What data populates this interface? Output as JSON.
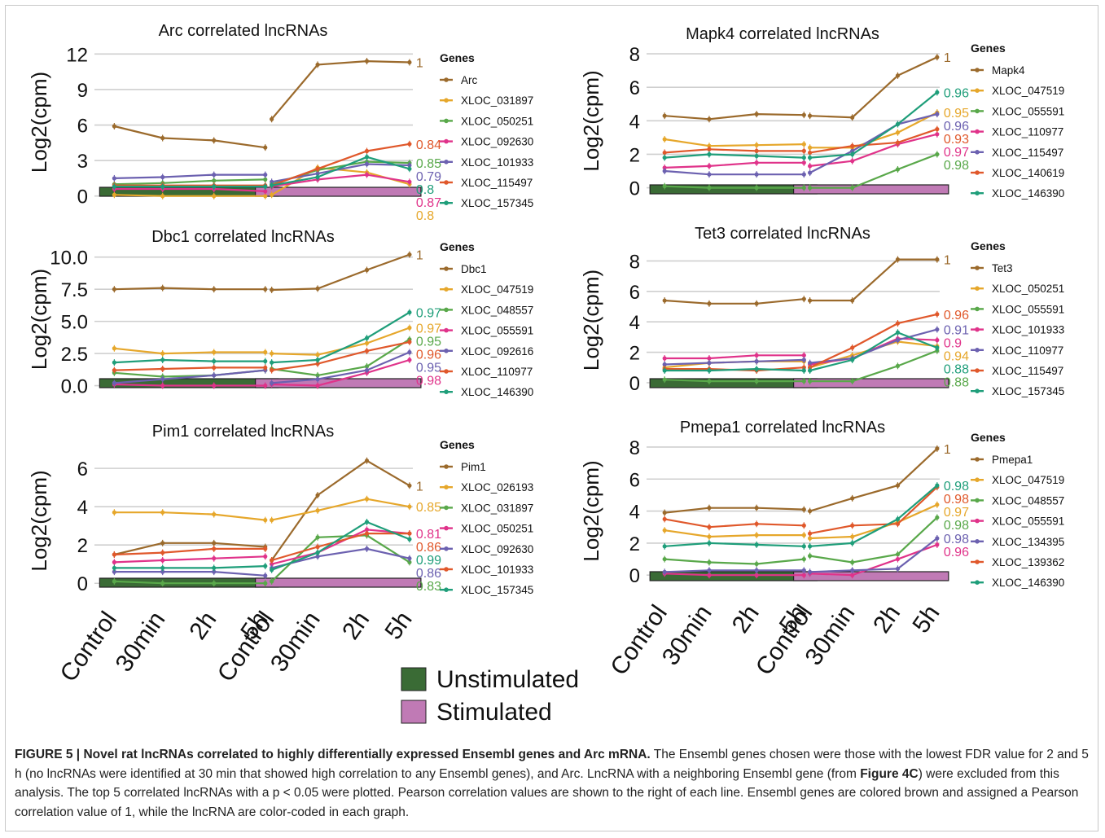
{
  "figure": {
    "x_ticks": [
      "Control",
      "30min",
      "2h",
      "5h"
    ],
    "condition_legend": [
      {
        "label": "Unstimulated",
        "color": "#3a6b35"
      },
      {
        "label": "Stimulated",
        "color": "#c07ab5"
      }
    ],
    "legend_title": "Genes",
    "ylabel": "Log2(cpm)"
  },
  "caption": {
    "label": "FIGURE 5 |",
    "title": "Novel rat lncRNAs correlated to highly differentially expressed Ensembl genes and Arc mRNA.",
    "text_1": "The Ensembl genes chosen were those with the lowest FDR value for 2 and 5 h (no lncRNAs were identified at 30 min that showed high correlation to any Ensembl genes), and Arc. LncRNA with a neighboring Ensembl gene (from",
    "ref": "Figure 4C",
    "text_2": ") were excluded from this analysis. The top 5 correlated lncRNAs with a p < 0.05 were plotted. Pearson correlation values are shown to the right of each line. Ensembl genes are colored brown and assigned a Pearson correlation value of 1, while the lncRNA are color-coded in each graph."
  },
  "chart_data": [
    {
      "type": "line",
      "title": "Arc correlated lncRNAs",
      "ylabel": "Log2(cpm)",
      "ylim": [
        -0.5,
        12.3
      ],
      "yticks": [
        0,
        3,
        6,
        9,
        12
      ],
      "ytick_labels": [
        "0",
        "3",
        "6",
        "9",
        "12"
      ],
      "categories": [
        "Control",
        "30min",
        "2h",
        "5h"
      ],
      "series": [
        {
          "name": "Arc",
          "color": "#9b6a2c",
          "unstimulated": [
            5.9,
            4.9,
            4.7,
            4.1
          ],
          "stimulated": [
            6.5,
            11.1,
            11.4,
            11.3
          ],
          "r": "1"
        },
        {
          "name": "XLOC_031897",
          "color": "#e6a72b",
          "unstimulated": [
            0.1,
            0.0,
            0.0,
            0.0
          ],
          "stimulated": [
            0.1,
            2.4,
            2.0,
            1.0
          ],
          "r": "0.8"
        },
        {
          "name": "XLOC_050251",
          "color": "#59a84a",
          "unstimulated": [
            1.0,
            1.1,
            1.3,
            1.4
          ],
          "stimulated": [
            1.0,
            2.2,
            2.9,
            2.8
          ],
          "r": "0.85"
        },
        {
          "name": "XLOC_092630",
          "color": "#e0338a",
          "unstimulated": [
            0.6,
            0.6,
            0.6,
            0.4
          ],
          "stimulated": [
            0.8,
            1.4,
            1.8,
            1.2
          ],
          "r": "0.87"
        },
        {
          "name": "XLOC_101933",
          "color": "#6c61b0",
          "unstimulated": [
            1.5,
            1.6,
            1.8,
            1.8
          ],
          "stimulated": [
            1.2,
            1.9,
            2.7,
            2.6
          ],
          "r": "0.79"
        },
        {
          "name": "XLOC_115497",
          "color": "#e0582b",
          "unstimulated": [
            0.9,
            0.9,
            0.9,
            0.9
          ],
          "stimulated": [
            0.9,
            2.3,
            3.8,
            4.4
          ],
          "r": "0.84"
        },
        {
          "name": "XLOC_157345",
          "color": "#1f9e7a",
          "unstimulated": [
            0.8,
            0.8,
            0.8,
            0.8
          ],
          "stimulated": [
            0.9,
            1.6,
            3.3,
            2.3
          ],
          "r": "0.8"
        }
      ]
    },
    {
      "type": "line",
      "title": "Mapk4 correlated lncRNAs",
      "ylabel": "Log2(cpm)",
      "ylim": [
        -0.7,
        8.2
      ],
      "yticks": [
        0,
        2,
        4,
        6,
        8
      ],
      "ytick_labels": [
        "0",
        "2",
        "4",
        "6",
        "8"
      ],
      "categories": [
        "Control",
        "30min",
        "2h",
        "5h"
      ],
      "series": [
        {
          "name": "Mapk4",
          "color": "#9b6a2c",
          "unstimulated": [
            4.3,
            4.1,
            4.4,
            4.35
          ],
          "stimulated": [
            4.3,
            4.2,
            6.7,
            7.8
          ],
          "r": "1"
        },
        {
          "name": "XLOC_047519",
          "color": "#e6a72b",
          "unstimulated": [
            2.9,
            2.5,
            2.55,
            2.6
          ],
          "stimulated": [
            2.4,
            2.4,
            3.3,
            4.5
          ],
          "r": "0.95"
        },
        {
          "name": "XLOC_055591",
          "color": "#59a84a",
          "unstimulated": [
            0.1,
            0.0,
            0.0,
            0.0
          ],
          "stimulated": [
            0.0,
            0.0,
            1.1,
            2.0
          ],
          "r": "0.98"
        },
        {
          "name": "XLOC_110977",
          "color": "#e0338a",
          "unstimulated": [
            1.2,
            1.3,
            1.5,
            1.5
          ],
          "stimulated": [
            1.3,
            1.6,
            2.6,
            3.2
          ],
          "r": "0.97"
        },
        {
          "name": "XLOC_115497",
          "color": "#6c61b0",
          "unstimulated": [
            1.0,
            0.8,
            0.8,
            0.8
          ],
          "stimulated": [
            0.9,
            2.2,
            3.8,
            4.4
          ],
          "r": "0.96"
        },
        {
          "name": "XLOC_140619",
          "color": "#e0582b",
          "unstimulated": [
            2.1,
            2.3,
            2.2,
            2.2
          ],
          "stimulated": [
            2.1,
            2.5,
            2.7,
            3.5
          ],
          "r": "0.93"
        },
        {
          "name": "XLOC_146390",
          "color": "#1f9e7a",
          "unstimulated": [
            1.8,
            2.0,
            1.9,
            1.8
          ],
          "stimulated": [
            1.8,
            2.0,
            3.8,
            5.7
          ],
          "r": "0.96"
        }
      ]
    },
    {
      "type": "line",
      "title": "Dbc1 correlated lncRNAs",
      "ylabel": "Log2(cpm)",
      "ylim": [
        -0.6,
        10.3
      ],
      "yticks": [
        0,
        2.5,
        5,
        7.5,
        10
      ],
      "ytick_labels": [
        "0.0",
        "2.5",
        "5.0",
        "7.5",
        "10.0"
      ],
      "categories": [
        "Control",
        "30min",
        "2h",
        "5h"
      ],
      "series": [
        {
          "name": "Dbc1",
          "color": "#9b6a2c",
          "unstimulated": [
            7.5,
            7.6,
            7.5,
            7.5
          ],
          "stimulated": [
            7.45,
            7.55,
            9.0,
            10.2
          ],
          "r": "1"
        },
        {
          "name": "XLOC_047519",
          "color": "#e6a72b",
          "unstimulated": [
            2.9,
            2.5,
            2.6,
            2.6
          ],
          "stimulated": [
            2.5,
            2.4,
            3.3,
            4.5
          ],
          "r": "0.97"
        },
        {
          "name": "XLOC_048557",
          "color": "#59a84a",
          "unstimulated": [
            1.0,
            0.7,
            0.8,
            1.2
          ],
          "stimulated": [
            1.3,
            0.8,
            1.5,
            3.6
          ],
          "r": "0.95"
        },
        {
          "name": "XLOC_055591",
          "color": "#e0338a",
          "unstimulated": [
            0.1,
            0.0,
            0.0,
            0.0
          ],
          "stimulated": [
            0.1,
            0.0,
            1.0,
            2.0
          ],
          "r": "0.98"
        },
        {
          "name": "XLOC_092616",
          "color": "#6c61b0",
          "unstimulated": [
            0.2,
            0.5,
            0.8,
            1.2
          ],
          "stimulated": [
            0.2,
            0.5,
            1.2,
            2.6
          ],
          "r": "0.95"
        },
        {
          "name": "XLOC_110977",
          "color": "#e0582b",
          "unstimulated": [
            1.2,
            1.3,
            1.4,
            1.4
          ],
          "stimulated": [
            1.2,
            1.7,
            2.7,
            3.4
          ],
          "r": "0.96"
        },
        {
          "name": "XLOC_146390",
          "color": "#1f9e7a",
          "unstimulated": [
            1.8,
            2.0,
            1.9,
            1.9
          ],
          "stimulated": [
            1.8,
            2.0,
            3.7,
            5.7
          ],
          "r": "0.97"
        }
      ]
    },
    {
      "type": "line",
      "title": "Tet3 correlated lncRNAs",
      "ylabel": "Log2(cpm)",
      "ylim": [
        -0.7,
        8.4
      ],
      "yticks": [
        0,
        2,
        4,
        6,
        8
      ],
      "ytick_labels": [
        "0",
        "2",
        "4",
        "6",
        "8"
      ],
      "categories": [
        "Control",
        "30min",
        "2h",
        "5h"
      ],
      "series": [
        {
          "name": "Tet3",
          "color": "#9b6a2c",
          "unstimulated": [
            5.4,
            5.2,
            5.2,
            5.5
          ],
          "stimulated": [
            5.4,
            5.4,
            8.1,
            8.1
          ],
          "r": "1"
        },
        {
          "name": "XLOC_050251",
          "color": "#e6a72b",
          "unstimulated": [
            1.0,
            1.3,
            1.4,
            1.4
          ],
          "stimulated": [
            1.0,
            1.8,
            2.7,
            2.4
          ],
          "r": "0.94"
        },
        {
          "name": "XLOC_055591",
          "color": "#59a84a",
          "unstimulated": [
            0.2,
            0.1,
            0.1,
            0.1
          ],
          "stimulated": [
            0.1,
            0.1,
            1.1,
            2.1
          ],
          "r": "0.88"
        },
        {
          "name": "XLOC_101933",
          "color": "#e0338a",
          "unstimulated": [
            1.6,
            1.6,
            1.8,
            1.8
          ],
          "stimulated": [
            1.2,
            1.6,
            2.9,
            2.8
          ],
          "r": "0.9"
        },
        {
          "name": "XLOC_110977",
          "color": "#6c61b0",
          "unstimulated": [
            1.2,
            1.3,
            1.4,
            1.5
          ],
          "stimulated": [
            1.3,
            1.6,
            2.8,
            3.5
          ],
          "r": "0.91"
        },
        {
          "name": "XLOC_115497",
          "color": "#e0582b",
          "unstimulated": [
            0.9,
            0.9,
            0.8,
            1.0
          ],
          "stimulated": [
            1.0,
            2.3,
            3.9,
            4.5
          ],
          "r": "0.96"
        },
        {
          "name": "XLOC_157345",
          "color": "#1f9e7a",
          "unstimulated": [
            0.8,
            0.8,
            0.9,
            0.8
          ],
          "stimulated": [
            0.8,
            1.5,
            3.3,
            2.3
          ],
          "r": "0.88"
        }
      ]
    },
    {
      "type": "line",
      "title": "Pim1 correlated lncRNAs",
      "ylabel": "Log2(cpm)",
      "ylim": [
        -0.5,
        6.6
      ],
      "yticks": [
        0,
        2,
        4,
        6
      ],
      "ytick_labels": [
        "0",
        "2",
        "4",
        "6"
      ],
      "categories": [
        "Control",
        "30min",
        "2h",
        "5h"
      ],
      "series": [
        {
          "name": "Pim1",
          "color": "#9b6a2c",
          "unstimulated": [
            1.5,
            2.1,
            2.1,
            1.9
          ],
          "stimulated": [
            1.2,
            4.6,
            6.4,
            5.1
          ],
          "r": "1"
        },
        {
          "name": "XLOC_026193",
          "color": "#e6a72b",
          "unstimulated": [
            3.7,
            3.7,
            3.6,
            3.3
          ],
          "stimulated": [
            3.3,
            3.8,
            4.4,
            4.0
          ],
          "r": "0.85"
        },
        {
          "name": "XLOC_031897",
          "color": "#59a84a",
          "unstimulated": [
            0.1,
            0.0,
            0.0,
            0.0
          ],
          "stimulated": [
            0.1,
            2.4,
            2.5,
            1.1
          ],
          "r": "0.83"
        },
        {
          "name": "XLOC_050251",
          "color": "#e0338a",
          "unstimulated": [
            1.1,
            1.2,
            1.3,
            1.4
          ],
          "stimulated": [
            1.0,
            1.6,
            2.8,
            2.6
          ],
          "r": "0.81"
        },
        {
          "name": "XLOC_092630",
          "color": "#6c61b0",
          "unstimulated": [
            0.6,
            0.6,
            0.6,
            0.4
          ],
          "stimulated": [
            0.8,
            1.4,
            1.8,
            1.3
          ],
          "r": "0.86"
        },
        {
          "name": "XLOC_101933",
          "color": "#e0582b",
          "unstimulated": [
            1.5,
            1.6,
            1.8,
            1.8
          ],
          "stimulated": [
            1.2,
            1.9,
            2.6,
            2.6
          ],
          "r": "0.86"
        },
        {
          "name": "XLOC_157345",
          "color": "#1f9e7a",
          "unstimulated": [
            0.8,
            0.8,
            0.8,
            0.9
          ],
          "stimulated": [
            0.7,
            1.6,
            3.2,
            2.3
          ],
          "r": "0.99"
        }
      ]
    },
    {
      "type": "line",
      "title": "Pmepa1 correlated lncRNAs",
      "ylabel": "Log2(cpm)",
      "ylim": [
        -0.7,
        8.2
      ],
      "yticks": [
        0,
        2,
        4,
        6,
        8
      ],
      "ytick_labels": [
        "0",
        "2",
        "4",
        "6",
        "8"
      ],
      "categories": [
        "Control",
        "30min",
        "2h",
        "5h"
      ],
      "series": [
        {
          "name": "Pmepa1",
          "color": "#9b6a2c",
          "unstimulated": [
            3.9,
            4.2,
            4.2,
            4.1
          ],
          "stimulated": [
            4.0,
            4.8,
            5.6,
            7.9
          ],
          "r": "1"
        },
        {
          "name": "XLOC_047519",
          "color": "#e6a72b",
          "unstimulated": [
            2.8,
            2.4,
            2.5,
            2.5
          ],
          "stimulated": [
            2.3,
            2.4,
            3.3,
            4.4
          ],
          "r": "0.97"
        },
        {
          "name": "XLOC_048557",
          "color": "#59a84a",
          "unstimulated": [
            1.0,
            0.8,
            0.7,
            1.0
          ],
          "stimulated": [
            1.2,
            0.8,
            1.3,
            3.6
          ],
          "r": "0.98"
        },
        {
          "name": "XLOC_055591",
          "color": "#e0338a",
          "unstimulated": [
            0.1,
            0.0,
            0.0,
            0.0
          ],
          "stimulated": [
            0.1,
            0.0,
            1.0,
            1.9
          ],
          "r": "0.96"
        },
        {
          "name": "XLOC_134395",
          "color": "#6c61b0",
          "unstimulated": [
            0.2,
            0.3,
            0.3,
            0.3
          ],
          "stimulated": [
            0.2,
            0.3,
            0.4,
            2.3
          ],
          "r": "0.98"
        },
        {
          "name": "XLOC_139362",
          "color": "#e0582b",
          "unstimulated": [
            3.5,
            3.0,
            3.2,
            3.1
          ],
          "stimulated": [
            2.6,
            3.1,
            3.2,
            5.5
          ],
          "r": "0.98"
        },
        {
          "name": "XLOC_146390",
          "color": "#1f9e7a",
          "unstimulated": [
            1.8,
            2.0,
            1.9,
            1.8
          ],
          "stimulated": [
            1.8,
            2.0,
            3.5,
            5.6
          ],
          "r": "0.98"
        }
      ]
    }
  ]
}
